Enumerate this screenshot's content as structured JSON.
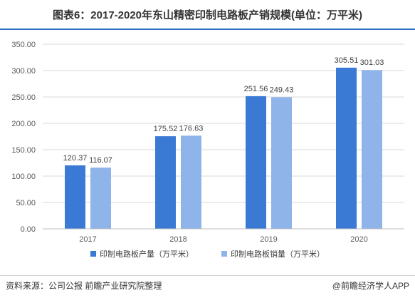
{
  "header": {
    "title": "图表6：2017-2020年东山精密印制电路板产销规模(单位：万平米)"
  },
  "footer": {
    "source": "资料来源：公司公报 前瞻产业研究院整理",
    "brand": "@前瞻经济学人APP"
  },
  "colors": {
    "production": "#3a7ad5",
    "sales": "#8fb4ea",
    "accent": "#2f6fbf"
  },
  "chart_data": {
    "type": "bar",
    "categories": [
      "2017",
      "2018",
      "2019",
      "2020"
    ],
    "series": [
      {
        "name": "印制电路板产量（万平米）",
        "values": [
          120.37,
          175.52,
          251.56,
          305.51
        ],
        "labels": [
          "120.37",
          "175.52",
          "251.56",
          "305.51"
        ]
      },
      {
        "name": "印制电路板销量（万平米）",
        "values": [
          116.07,
          176.63,
          249.43,
          301.03
        ],
        "labels": [
          "116.07",
          "176.63",
          "249.43",
          "301.03"
        ]
      }
    ],
    "yticks": [
      "0.00",
      "50.00",
      "100.00",
      "150.00",
      "200.00",
      "250.00",
      "300.00",
      "350.00"
    ],
    "ylim": [
      0,
      350
    ],
    "grid": true,
    "legend_position": "bottom"
  }
}
